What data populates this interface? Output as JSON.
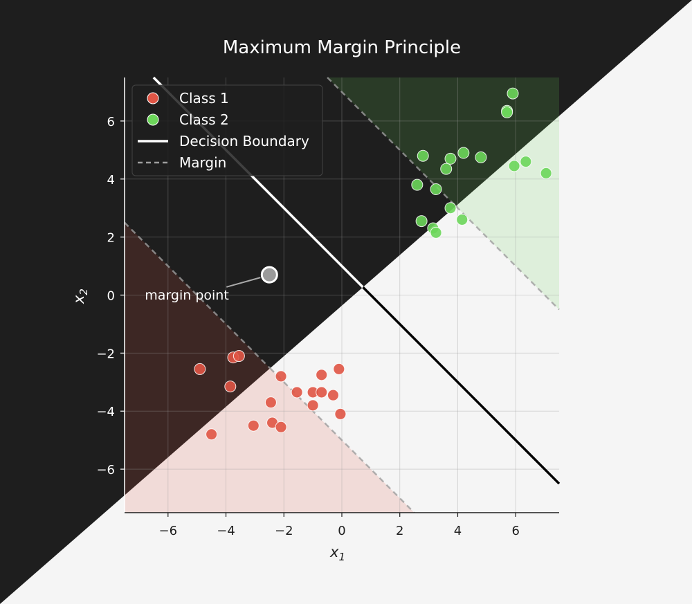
{
  "chart_data": {
    "type": "scatter",
    "title": "Maximum Margin Principle",
    "xlabel": "x",
    "xlabel_sub": "1",
    "ylabel": "x",
    "ylabel_sub": "2",
    "xlim": [
      -7.5,
      7.5
    ],
    "ylim": [
      -7.5,
      7.5
    ],
    "xticks": [
      -6,
      -4,
      -2,
      0,
      2,
      4,
      6
    ],
    "yticks": [
      -6,
      -4,
      -2,
      0,
      2,
      4,
      6
    ],
    "grid": true,
    "legend_position": "top-left",
    "boundary": {
      "normal": [
        1,
        1
      ],
      "offset": 1.0
    },
    "margin_offsets": [
      -5.0,
      7.0
    ],
    "series": [
      {
        "name": "Class 1",
        "color": "#e05545",
        "points": [
          [
            -4.9,
            -2.55
          ],
          [
            -3.75,
            -2.15
          ],
          [
            -3.55,
            -2.1
          ],
          [
            -3.85,
            -3.15
          ],
          [
            -4.5,
            -4.8
          ],
          [
            -3.05,
            -4.5
          ],
          [
            -2.4,
            -4.4
          ],
          [
            -2.1,
            -4.55
          ],
          [
            -2.45,
            -3.7
          ],
          [
            -2.1,
            -2.8
          ],
          [
            -1.55,
            -3.35
          ],
          [
            -1.0,
            -3.35
          ],
          [
            -0.7,
            -3.35
          ],
          [
            -0.3,
            -3.45
          ],
          [
            -1.0,
            -3.8
          ],
          [
            -0.7,
            -2.75
          ],
          [
            -0.1,
            -2.55
          ],
          [
            -0.05,
            -4.1
          ]
        ]
      },
      {
        "name": "Class 2",
        "color": "#6cd65a",
        "points": [
          [
            5.9,
            6.95
          ],
          [
            5.7,
            6.35
          ],
          [
            5.7,
            6.3
          ],
          [
            2.8,
            4.8
          ],
          [
            3.75,
            4.7
          ],
          [
            4.2,
            4.9
          ],
          [
            4.8,
            4.75
          ],
          [
            3.6,
            4.35
          ],
          [
            2.6,
            3.8
          ],
          [
            3.25,
            3.65
          ],
          [
            5.95,
            4.45
          ],
          [
            6.35,
            4.6
          ],
          [
            7.05,
            4.2
          ],
          [
            3.75,
            3.0
          ],
          [
            4.15,
            2.6
          ],
          [
            2.75,
            2.55
          ],
          [
            3.15,
            2.3
          ],
          [
            3.25,
            2.15
          ]
        ]
      }
    ],
    "legend": {
      "class1": "Class 1",
      "class2": "Class 2",
      "boundary": "Decision Boundary",
      "margin": "Margin"
    },
    "annotation": {
      "text": "margin point",
      "point": [
        -2.5,
        0.7
      ],
      "text_at": [
        -6.8,
        -0.15
      ]
    },
    "colors": {
      "dark_bg": "#1e1e1e",
      "light_bg": "#f5f5f5",
      "class1_region": "#e05545",
      "class2_region": "#6cd65a",
      "margin_line": "#9e9e9e",
      "grid": "#9a9a9a"
    }
  }
}
